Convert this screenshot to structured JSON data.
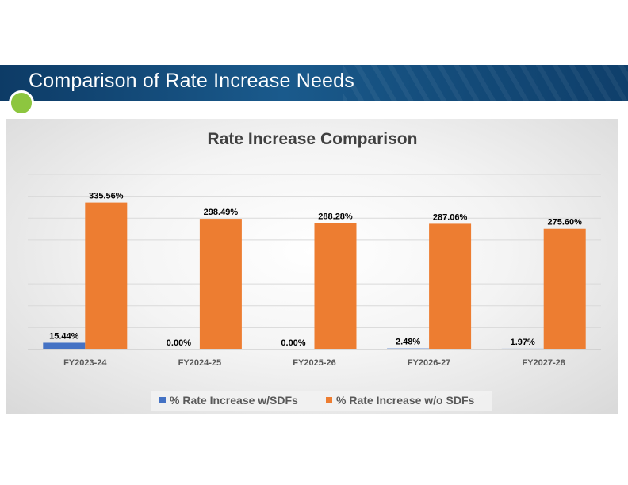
{
  "slide": {
    "title": "Comparison of Rate Increase Needs"
  },
  "colors": {
    "series_sdf": "#4472c4",
    "series_no_sdf": "#ed7d31",
    "accent": "#8dc63f",
    "banner": "#134a78"
  },
  "chart_data": {
    "type": "bar",
    "title": "Rate Increase Comparison",
    "categories": [
      "FY2023-24",
      "FY2024-25",
      "FY2025-26",
      "FY2026-27",
      "FY2027-28"
    ],
    "series": [
      {
        "name": "% Rate Increase w/SDFs",
        "values": [
          15.44,
          0.0,
          0.0,
          2.48,
          1.97
        ],
        "labels": [
          "15.44%",
          "0.00%",
          "0.00%",
          "2.48%",
          "1.97%"
        ]
      },
      {
        "name": "% Rate Increase w/o SDFs",
        "values": [
          335.56,
          298.49,
          288.28,
          287.06,
          275.6
        ],
        "labels": [
          "335.56%",
          "298.49%",
          "288.28%",
          "287.06%",
          "275.60%"
        ]
      }
    ],
    "ylim": [
      0,
      400
    ],
    "grid": true,
    "legend": "bottom",
    "xlabel": "",
    "ylabel": ""
  }
}
